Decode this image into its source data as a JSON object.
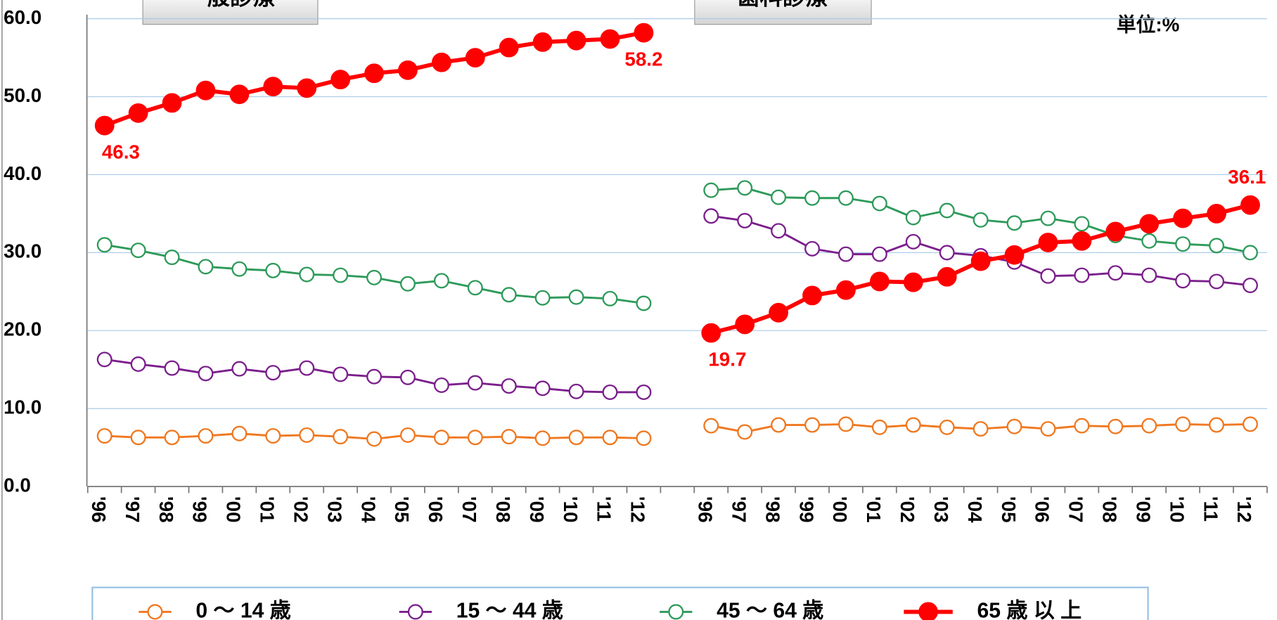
{
  "chart_data": {
    "type": "line",
    "annotations": [
      "一般診療",
      "歯科診療",
      "単位:%"
    ],
    "categories": [
      "'96",
      "'97",
      "'98",
      "'99",
      "'00",
      "'01",
      "'02",
      "'03",
      "'04",
      "'05",
      "'06",
      "'07",
      "'08",
      "'09",
      "'10",
      "'11",
      "'12",
      null,
      "'96",
      "'97",
      "'98",
      "'99",
      "'00",
      "'01",
      "'02",
      "'03",
      "'04",
      "'05",
      "'06",
      "'07",
      "'08",
      "'09",
      "'10",
      "'11",
      "'12"
    ],
    "series": [
      {
        "name": "0 ～ 14 歳",
        "color": "#f07820",
        "filled": false,
        "values": [
          6.5,
          6.3,
          6.3,
          6.5,
          6.8,
          6.5,
          6.6,
          6.4,
          6.1,
          6.6,
          6.3,
          6.3,
          6.4,
          6.2,
          6.3,
          6.3,
          6.2,
          null,
          7.8,
          7.0,
          7.9,
          7.9,
          8.0,
          7.6,
          7.9,
          7.6,
          7.4,
          7.7,
          7.4,
          7.8,
          7.7,
          7.8,
          8.0,
          7.9,
          8.0
        ]
      },
      {
        "name": "15 ～ 44 歳",
        "color": "#7b1f8c",
        "filled": false,
        "values": [
          16.3,
          15.7,
          15.2,
          14.5,
          15.1,
          14.6,
          15.2,
          14.4,
          14.1,
          14.0,
          13.0,
          13.3,
          12.9,
          12.6,
          12.2,
          12.1,
          12.1,
          null,
          34.7,
          34.1,
          32.8,
          30.5,
          29.8,
          29.8,
          31.4,
          30.0,
          29.6,
          28.8,
          27.0,
          27.1,
          27.4,
          27.1,
          26.4,
          26.3,
          25.8
        ]
      },
      {
        "name": "45 ～ 64 歳",
        "color": "#2e9a5a",
        "filled": false,
        "values": [
          31.0,
          30.3,
          29.4,
          28.2,
          27.9,
          27.7,
          27.2,
          27.1,
          26.8,
          26.0,
          26.4,
          25.5,
          24.6,
          24.2,
          24.3,
          24.1,
          23.5,
          null,
          38.0,
          38.3,
          37.1,
          37.0,
          37.0,
          36.3,
          34.5,
          35.4,
          34.2,
          33.8,
          34.4,
          33.7,
          32.2,
          31.5,
          31.1,
          30.9,
          30.0
        ]
      },
      {
        "name": "65 歳 以 上",
        "color": "#ff0000",
        "filled": true,
        "values": [
          46.3,
          47.9,
          49.2,
          50.8,
          50.3,
          51.3,
          51.1,
          52.2,
          53.0,
          53.4,
          54.4,
          55.0,
          56.3,
          57.0,
          57.2,
          57.4,
          58.2,
          null,
          19.7,
          20.8,
          22.3,
          24.5,
          25.2,
          26.3,
          26.2,
          26.9,
          28.9,
          29.7,
          31.3,
          31.5,
          32.7,
          33.7,
          34.4,
          35.0,
          36.1
        ],
        "value_labels": [
          "46.3",
          null,
          null,
          null,
          null,
          null,
          null,
          null,
          null,
          null,
          null,
          null,
          null,
          null,
          null,
          null,
          "58.2",
          null,
          "19.7",
          null,
          null,
          null,
          null,
          null,
          null,
          null,
          null,
          null,
          null,
          null,
          null,
          null,
          null,
          null,
          "36.1"
        ]
      }
    ],
    "ylim": [
      0,
      60
    ],
    "yticks": [
      {
        "value": 0,
        "label": "0.0"
      },
      {
        "value": 10,
        "label": "10.0"
      },
      {
        "value": 20,
        "label": "20.0"
      },
      {
        "value": 30,
        "label": "30.0"
      },
      {
        "value": 40,
        "label": "40.0"
      },
      {
        "value": 50,
        "label": "50.0"
      },
      {
        "value": 60,
        "label": "60.0"
      }
    ],
    "grid": true,
    "legend": "bottom"
  }
}
